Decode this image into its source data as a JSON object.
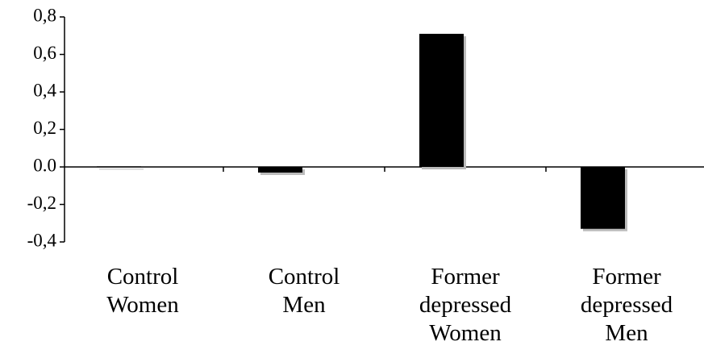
{
  "chart_data": {
    "type": "bar",
    "categories": [
      "Control\nWomen",
      "Control\nMen",
      "Former\ndepressed\nWomen",
      "Former\ndepressed\nMen"
    ],
    "values": [
      0.003,
      -0.03,
      0.71,
      -0.33
    ],
    "color": "#000000",
    "ylim": [
      -0.4,
      0.8
    ],
    "yticks": [
      {
        "value": -0.4,
        "label": "-0,4"
      },
      {
        "value": -0.2,
        "label": "-0,2"
      },
      {
        "value": 0,
        "label": "0.0"
      },
      {
        "value": 0.2,
        "label": "0,2"
      },
      {
        "value": 0.4,
        "label": "0,4"
      },
      {
        "value": 0.6,
        "label": "0,6"
      },
      {
        "value": 0.8,
        "label": "0,8"
      }
    ]
  }
}
